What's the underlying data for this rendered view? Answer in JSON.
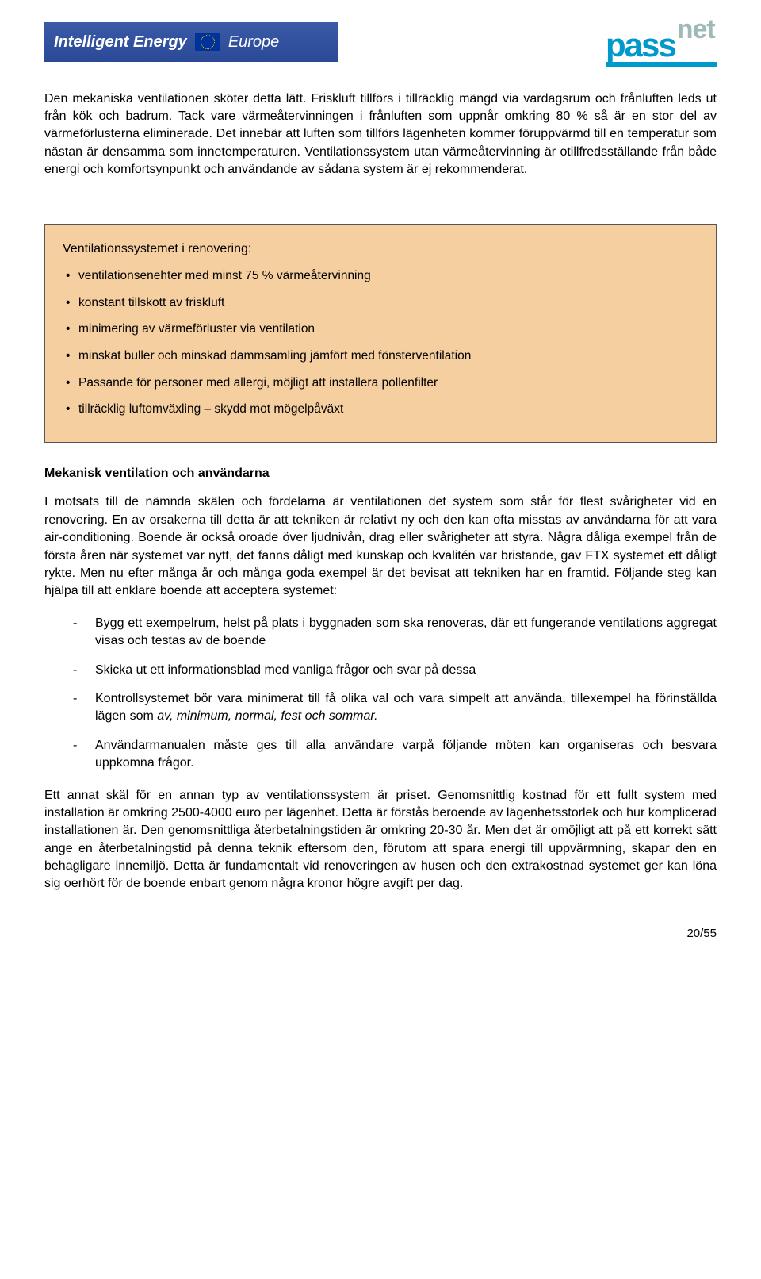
{
  "header": {
    "ie_text1": "Intelligent Energy",
    "ie_text2": "Europe",
    "passnet_pass": "pass",
    "passnet_net": "net"
  },
  "para1": "Den mekaniska ventilationen sköter detta lätt. Friskluft tillförs i tillräcklig mängd via vardagsrum och frånluften leds ut från kök och badrum. Tack vare värmeåtervinningen i frånluften som uppnår omkring 80 % så är en stor del av värmeförlusterna eliminerade. Det innebär att luften som tillförs lägenheten kommer föruppvärmd till en temperatur som nästan är densamma som innetemperaturen. Ventilationssystem utan värmeåtervinning är otillfredsställande från både energi och komfortsynpunkt och användande av sådana system är ej rekommenderat.",
  "callout": {
    "title": "Ventilationssystemet i renovering:",
    "items": [
      "ventilationsenehter med minst 75 % värmeåtervinning",
      "konstant tillskott av friskluft",
      "minimering av värmeförluster via ventilation",
      "minskat buller och minskad dammsamling jämfört med fönsterventilation",
      "Passande för personer med allergi, möjligt att installera pollenfilter",
      "tillräcklig luftomväxling – skydd mot mögelpåväxt"
    ]
  },
  "heading2": "Mekanisk ventilation och användarna",
  "para2": "I motsats till de nämnda skälen och fördelarna är ventilationen det system som står för flest svårigheter vid en renovering. En av orsakerna till detta är att tekniken är relativt ny och den kan ofta misstas av användarna för att vara air-conditioning. Boende är också oroade över ljudnivån, drag eller svårigheter att styra. Några dåliga exempel från de första åren när systemet var nytt, det fanns dåligt med kunskap och kvalitén var bristande, gav FTX systemet ett dåligt rykte. Men nu efter många år och många goda exempel är det bevisat att tekniken har en framtid. Följande steg kan hjälpa till att enklare boende att acceptera systemet:",
  "steps": {
    "s1": "Bygg ett exempelrum, helst på plats i byggnaden som ska renoveras, där ett fungerande ventilations aggregat visas och testas av de boende",
    "s2": "Skicka ut ett informationsblad med vanliga frågor och svar på dessa",
    "s3a": "Kontrollsystemet bör vara minimerat till få olika val och vara simpelt att använda, tillexempel ha förinställda lägen som ",
    "s3b": "av, minimum, normal, fest och sommar.",
    "s4": "Användarmanualen måste ges till alla användare varpå följande möten kan organiseras och besvara uppkomna frågor."
  },
  "para3": "Ett annat skäl för en annan typ av ventilationssystem är priset. Genomsnittlig kostnad för ett fullt system med installation är omkring 2500-4000 euro per lägenhet. Detta är förstås beroende av lägenhetsstorlek och hur komplicerad installationen är. Den genomsnittliga återbetalningstiden är omkring 20-30 år. Men det är omöjligt att på ett korrekt sätt ange en återbetalningstid på denna teknik eftersom den, förutom att spara energi till uppvärmning, skapar den en behagligare innemiljö. Detta är fundamentalt vid renoveringen av husen och den extrakostnad systemet ger kan löna sig oerhört för de boende enbart genom några kronor högre avgift per dag.",
  "footer": "20/55"
}
